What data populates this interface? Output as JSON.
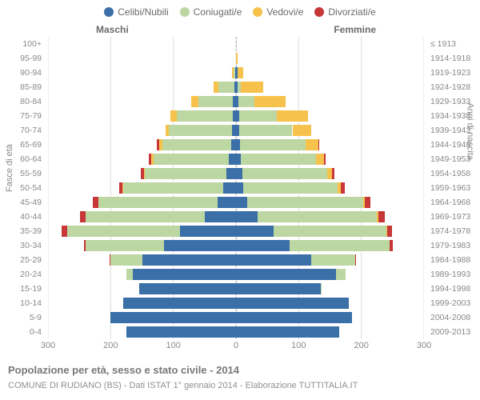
{
  "chart": {
    "type": "population-pyramid",
    "background_color": "#ffffff",
    "grid_color": "#dddddd",
    "centerline_dash": "3,3",
    "font_family": "Arial",
    "label_fontsize": 11,
    "tick_fontsize": 10.5,
    "legend": [
      {
        "key": "celibi",
        "label": "Celibi/Nubili",
        "color": "#3a6fa8"
      },
      {
        "key": "coniugati",
        "label": "Coniugati/e",
        "color": "#bcd7a2"
      },
      {
        "key": "vedovi",
        "label": "Vedovi/e",
        "color": "#f7c24b"
      },
      {
        "key": "divorziati",
        "label": "Divorziati/e",
        "color": "#c83737"
      }
    ],
    "columns": {
      "male": "Maschi",
      "female": "Femmine"
    },
    "y_title_left": "Fasce di età",
    "y_title_right": "Anni di nascita",
    "x": {
      "max": 300,
      "ticks": [
        300,
        200,
        100,
        0,
        100,
        200,
        300
      ]
    },
    "age_groups": [
      {
        "age": "100+",
        "birth": "≤ 1913"
      },
      {
        "age": "95-99",
        "birth": "1914-1918"
      },
      {
        "age": "90-94",
        "birth": "1919-1923"
      },
      {
        "age": "85-89",
        "birth": "1924-1928"
      },
      {
        "age": "80-84",
        "birth": "1929-1933"
      },
      {
        "age": "75-79",
        "birth": "1934-1938"
      },
      {
        "age": "70-74",
        "birth": "1939-1943"
      },
      {
        "age": "65-69",
        "birth": "1944-1948"
      },
      {
        "age": "60-64",
        "birth": "1949-1953"
      },
      {
        "age": "55-59",
        "birth": "1954-1958"
      },
      {
        "age": "50-54",
        "birth": "1959-1963"
      },
      {
        "age": "45-49",
        "birth": "1964-1968"
      },
      {
        "age": "40-44",
        "birth": "1969-1973"
      },
      {
        "age": "35-39",
        "birth": "1974-1978"
      },
      {
        "age": "30-34",
        "birth": "1979-1983"
      },
      {
        "age": "25-29",
        "birth": "1984-1988"
      },
      {
        "age": "20-24",
        "birth": "1989-1993"
      },
      {
        "age": "15-19",
        "birth": "1994-1998"
      },
      {
        "age": "10-14",
        "birth": "1999-2003"
      },
      {
        "age": "5-9",
        "birth": "2004-2008"
      },
      {
        "age": "0-4",
        "birth": "2009-2013"
      }
    ],
    "data": {
      "male": [
        {
          "celibi": 0,
          "coniugati": 0,
          "vedovi": 0,
          "divorziati": 0
        },
        {
          "celibi": 0,
          "coniugati": 0,
          "vedovi": 0,
          "divorziati": 0
        },
        {
          "celibi": 1,
          "coniugati": 3,
          "vedovi": 3,
          "divorziati": 0
        },
        {
          "celibi": 3,
          "coniugati": 25,
          "vedovi": 8,
          "divorziati": 0
        },
        {
          "celibi": 5,
          "coniugati": 55,
          "vedovi": 12,
          "divorziati": 0
        },
        {
          "celibi": 5,
          "coniugati": 90,
          "vedovi": 10,
          "divorziati": 0
        },
        {
          "celibi": 7,
          "coniugati": 100,
          "vedovi": 6,
          "divorziati": 0
        },
        {
          "celibi": 8,
          "coniugati": 110,
          "vedovi": 5,
          "divorziati": 3
        },
        {
          "celibi": 12,
          "coniugati": 120,
          "vedovi": 3,
          "divorziati": 4
        },
        {
          "celibi": 15,
          "coniugati": 130,
          "vedovi": 2,
          "divorziati": 5
        },
        {
          "celibi": 20,
          "coniugati": 160,
          "vedovi": 1,
          "divorziati": 6
        },
        {
          "celibi": 30,
          "coniugati": 190,
          "vedovi": 0,
          "divorziati": 8
        },
        {
          "celibi": 50,
          "coniugati": 190,
          "vedovi": 0,
          "divorziati": 9
        },
        {
          "celibi": 90,
          "coniugati": 180,
          "vedovi": 0,
          "divorziati": 8
        },
        {
          "celibi": 115,
          "coniugati": 125,
          "vedovi": 0,
          "divorziati": 3
        },
        {
          "celibi": 150,
          "coniugati": 50,
          "vedovi": 0,
          "divorziati": 2
        },
        {
          "celibi": 165,
          "coniugati": 10,
          "vedovi": 0,
          "divorziati": 0
        },
        {
          "celibi": 155,
          "coniugati": 0,
          "vedovi": 0,
          "divorziati": 0
        },
        {
          "celibi": 180,
          "coniugati": 0,
          "vedovi": 0,
          "divorziati": 0
        },
        {
          "celibi": 200,
          "coniugati": 0,
          "vedovi": 0,
          "divorziati": 0
        },
        {
          "celibi": 175,
          "coniugati": 0,
          "vedovi": 0,
          "divorziati": 0
        }
      ],
      "female": [
        {
          "celibi": 0,
          "coniugati": 0,
          "vedovi": 0,
          "divorziati": 0
        },
        {
          "celibi": 0,
          "coniugati": 0,
          "vedovi": 3,
          "divorziati": 0
        },
        {
          "celibi": 2,
          "coniugati": 0,
          "vedovi": 10,
          "divorziati": 0
        },
        {
          "celibi": 3,
          "coniugati": 5,
          "vedovi": 35,
          "divorziati": 0
        },
        {
          "celibi": 4,
          "coniugati": 25,
          "vedovi": 50,
          "divorziati": 0
        },
        {
          "celibi": 5,
          "coniugati": 60,
          "vedovi": 50,
          "divorziati": 0
        },
        {
          "celibi": 5,
          "coniugati": 85,
          "vedovi": 30,
          "divorziati": 0
        },
        {
          "celibi": 6,
          "coniugati": 105,
          "vedovi": 20,
          "divorziati": 2
        },
        {
          "celibi": 8,
          "coniugati": 120,
          "vedovi": 12,
          "divorziati": 3
        },
        {
          "celibi": 10,
          "coniugati": 135,
          "vedovi": 8,
          "divorziati": 4
        },
        {
          "celibi": 12,
          "coniugati": 150,
          "vedovi": 5,
          "divorziati": 6
        },
        {
          "celibi": 18,
          "coniugati": 185,
          "vedovi": 3,
          "divorziati": 8
        },
        {
          "celibi": 35,
          "coniugati": 190,
          "vedovi": 2,
          "divorziati": 10
        },
        {
          "celibi": 60,
          "coniugati": 180,
          "vedovi": 1,
          "divorziati": 8
        },
        {
          "celibi": 85,
          "coniugati": 160,
          "vedovi": 0,
          "divorziati": 5
        },
        {
          "celibi": 120,
          "coniugati": 70,
          "vedovi": 0,
          "divorziati": 2
        },
        {
          "celibi": 160,
          "coniugati": 15,
          "vedovi": 0,
          "divorziati": 0
        },
        {
          "celibi": 135,
          "coniugati": 2,
          "vedovi": 0,
          "divorziati": 0
        },
        {
          "celibi": 180,
          "coniugati": 0,
          "vedovi": 0,
          "divorziati": 0
        },
        {
          "celibi": 185,
          "coniugati": 0,
          "vedovi": 0,
          "divorziati": 0
        },
        {
          "celibi": 165,
          "coniugati": 0,
          "vedovi": 0,
          "divorziati": 0
        }
      ]
    },
    "footer": {
      "title": "Popolazione per età, sesso e stato civile - 2014",
      "subtitle": "COMUNE DI RUDIANO (BS) - Dati ISTAT 1° gennaio 2014 - Elaborazione TUTTITALIA.IT"
    }
  }
}
